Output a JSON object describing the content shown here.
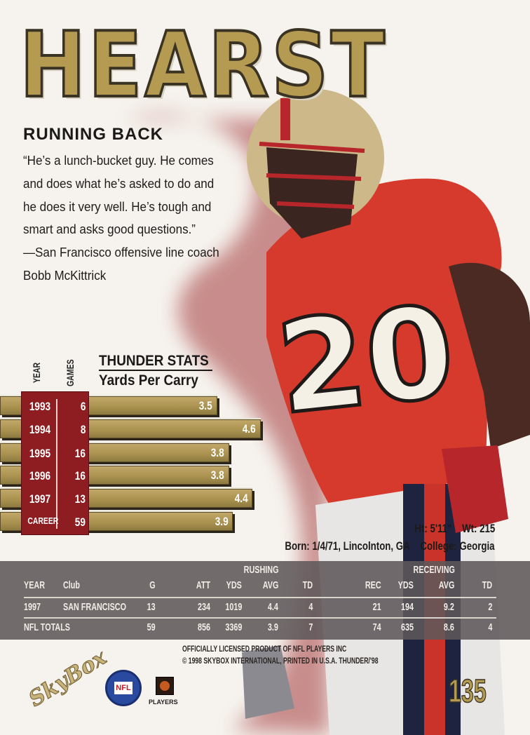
{
  "player": {
    "name": "HEARST",
    "position": "RUNNING BACK",
    "jersey_number": "20"
  },
  "quote": [
    "“He’s a lunch-bucket guy. He comes",
    "and does what he’s asked to do and",
    "he does it very well. He’s tough and",
    "smart and asks good questions.”",
    "—San Francisco offensive line coach",
    "Bobb McKittrick"
  ],
  "chart_data": {
    "type": "bar",
    "title": "THUNDER STATS",
    "subtitle": "Yards Per Carry",
    "column_labels": {
      "year": "YEAR",
      "games": "GAMES"
    },
    "categories": [
      "1993",
      "1994",
      "1995",
      "1996",
      "1997",
      "CAREER"
    ],
    "games": [
      "6",
      "8",
      "16",
      "16",
      "13",
      "59"
    ],
    "values": [
      3.5,
      4.6,
      3.8,
      3.8,
      4.4,
      3.9
    ],
    "value_labels": [
      "3.5",
      "4.6",
      "3.8",
      "3.8",
      "4.4",
      "3.9"
    ],
    "orientation": "horizontal"
  },
  "bio": {
    "height": "Ht: 5'11\"",
    "weight": "Wt: 215",
    "born": "Born: 1/4/71, Lincolnton, GA",
    "college": "College: Georgia"
  },
  "stats": {
    "group_rushing": "RUSHING",
    "group_receiving": "RECEIVING",
    "headers": [
      "YEAR",
      "Club",
      "G",
      "ATT",
      "YDS",
      "AVG",
      "TD",
      "REC",
      "YDS",
      "AVG",
      "TD"
    ],
    "rows": [
      [
        "1997",
        "SAN FRANCISCO",
        "13",
        "234",
        "1019",
        "4.4",
        "4",
        "21",
        "194",
        "9.2",
        "2"
      ],
      [
        "NFL TOTALS",
        "",
        "59",
        "856",
        "3369",
        "3.9",
        "7",
        "74",
        "635",
        "8.6",
        "4"
      ]
    ]
  },
  "legal": [
    "OFFICIALLY LICENSED PRODUCT OF NFL PLAYERS INC",
    "© 1998 SKYBOX INTERNATIONAL, PRINTED IN U.S.A. THUNDER/'98"
  ],
  "logos": {
    "skybox": "SkyBox",
    "nfl": "NFL",
    "players": "PLAYERS"
  },
  "card_number": "135",
  "colors": {
    "gold": "#b59a52",
    "red": "#8e1d22",
    "jersey": "#d63a2c",
    "band": "#5f585a"
  }
}
